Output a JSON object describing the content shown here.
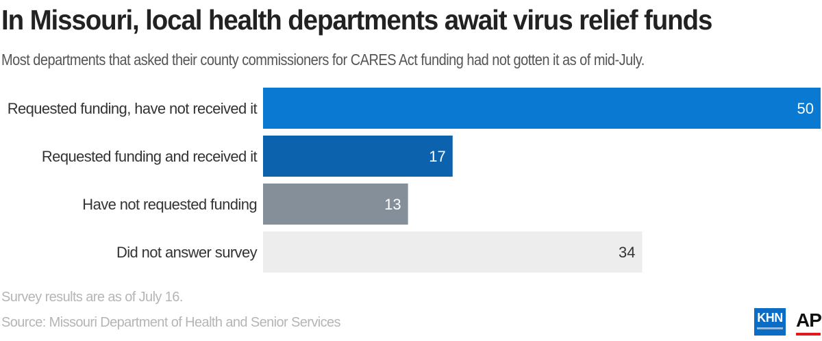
{
  "title": "In Missouri, local health departments await virus relief funds",
  "subtitle": "Most departments that asked their county commissioners for CARES Act funding had not gotten it as of mid-July.",
  "chart_data": {
    "type": "bar",
    "orientation": "horizontal",
    "categories": [
      "Requested funding, have not received it",
      "Requested funding and received it",
      "Have not requested funding",
      "Did not answer survey"
    ],
    "values": [
      50,
      17,
      13,
      34
    ],
    "bar_colors": [
      "#0a79d1",
      "#0d62ad",
      "#858f99",
      "#ededed"
    ],
    "label_colors": [
      "#ffffff",
      "#ffffff",
      "#ffffff",
      "#333333"
    ],
    "xlim": [
      0,
      50
    ],
    "grid": false,
    "legend": "none"
  },
  "note": "Survey results are as of July 16.",
  "source": "Source: Missouri Department of Health and Senior Services",
  "logos": {
    "khn": "KHN",
    "ap": "AP",
    "khn_color": "#0a6cc4",
    "ap_accent": "#e2191b"
  }
}
